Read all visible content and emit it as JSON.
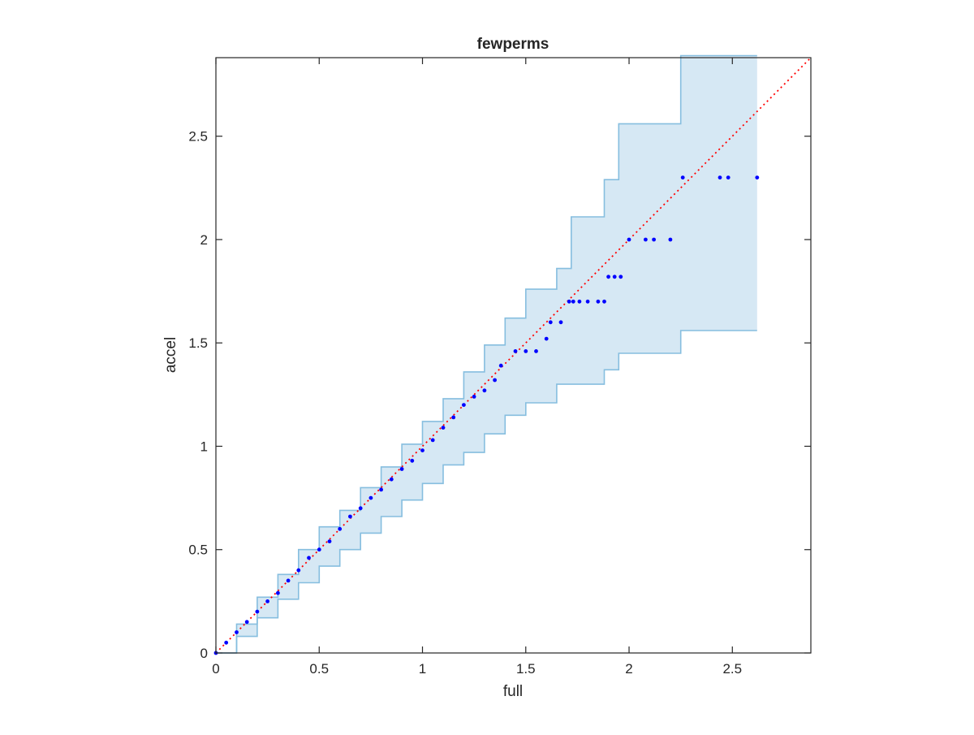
{
  "chart_data": {
    "type": "scatter",
    "title": "fewperms",
    "xlabel": "full",
    "ylabel": "accel",
    "xlim": [
      0,
      2.88
    ],
    "ylim": [
      0,
      2.88
    ],
    "xticks": [
      "0",
      "0.5",
      "1",
      "1.5",
      "2",
      "2.5"
    ],
    "yticks": [
      "0",
      "0.5",
      "1",
      "1.5",
      "2",
      "2.5"
    ],
    "grid": false,
    "legend": "none",
    "reference_line": {
      "style": "dotted",
      "color": "#ff0000",
      "from": [
        0,
        0
      ],
      "to": [
        2.88,
        2.88
      ]
    },
    "band": {
      "color_fill": "#d6e8f4",
      "color_edge": "#86bedf",
      "x": [
        0,
        0.1,
        0.2,
        0.3,
        0.4,
        0.5,
        0.6,
        0.7,
        0.8,
        0.9,
        1.0,
        1.1,
        1.2,
        1.3,
        1.4,
        1.5,
        1.6,
        1.65,
        1.72,
        1.78,
        1.88,
        1.95,
        2.0,
        2.2,
        2.25,
        2.62
      ],
      "upper": [
        0.0,
        0.14,
        0.27,
        0.38,
        0.5,
        0.61,
        0.69,
        0.8,
        0.9,
        1.01,
        1.12,
        1.23,
        1.36,
        1.49,
        1.62,
        1.76,
        1.76,
        1.86,
        2.11,
        2.11,
        2.29,
        2.56,
        2.56,
        2.56,
        2.89,
        2.89
      ],
      "lower": [
        0.0,
        0.08,
        0.17,
        0.26,
        0.34,
        0.42,
        0.5,
        0.58,
        0.66,
        0.74,
        0.82,
        0.91,
        0.97,
        1.06,
        1.15,
        1.21,
        1.21,
        1.3,
        1.3,
        1.3,
        1.37,
        1.45,
        1.45,
        1.45,
        1.56,
        1.56
      ]
    },
    "series": [
      {
        "color": "#0000ff",
        "marker": "dot",
        "x": [
          0.0,
          0.05,
          0.1,
          0.15,
          0.2,
          0.25,
          0.3,
          0.35,
          0.4,
          0.45,
          0.5,
          0.55,
          0.6,
          0.65,
          0.7,
          0.75,
          0.8,
          0.85,
          0.9,
          0.95,
          1.0,
          1.05,
          1.1,
          1.15,
          1.2,
          1.25,
          1.3,
          1.35,
          1.38,
          1.45,
          1.5,
          1.55,
          1.6,
          1.62,
          1.67,
          1.71,
          1.73,
          1.76,
          1.8,
          1.85,
          1.88,
          1.9,
          1.93,
          1.96,
          2.0,
          2.08,
          2.12,
          2.2,
          2.26,
          2.44,
          2.48,
          2.62
        ],
        "y": [
          0.0,
          0.05,
          0.1,
          0.15,
          0.2,
          0.25,
          0.29,
          0.35,
          0.4,
          0.46,
          0.5,
          0.54,
          0.6,
          0.66,
          0.7,
          0.75,
          0.79,
          0.84,
          0.89,
          0.93,
          0.98,
          1.03,
          1.09,
          1.14,
          1.2,
          1.24,
          1.27,
          1.32,
          1.39,
          1.46,
          1.46,
          1.46,
          1.52,
          1.6,
          1.6,
          1.7,
          1.7,
          1.7,
          1.7,
          1.7,
          1.7,
          1.82,
          1.82,
          1.82,
          2.0,
          2.0,
          2.0,
          2.0,
          2.3,
          2.3,
          2.3,
          2.3
        ]
      }
    ]
  }
}
